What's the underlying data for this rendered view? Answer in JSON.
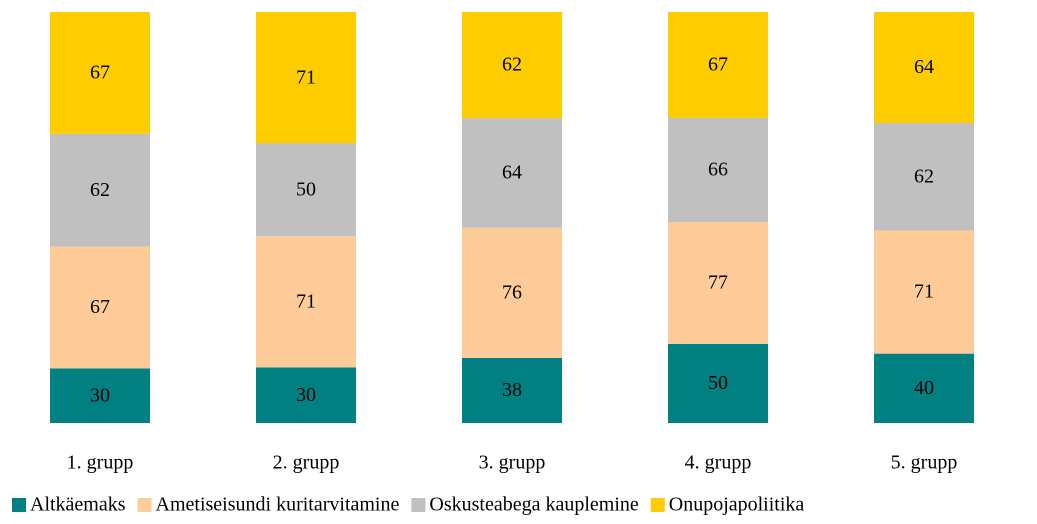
{
  "chart_data": {
    "type": "bar",
    "stacking": "percent",
    "categories": [
      "1. grupp",
      "2. grupp",
      "3. grupp",
      "4. grupp",
      "5. grupp"
    ],
    "series": [
      {
        "name": "Altkäemaks",
        "color": "#008080",
        "values": [
          30,
          30,
          38,
          50,
          40
        ]
      },
      {
        "name": "Ametiseisundi kuritarvitamine",
        "color": "#ffcc99",
        "values": [
          67,
          71,
          76,
          77,
          71
        ]
      },
      {
        "name": "Oskusteabega kauplemine",
        "color": "#c0c0c0",
        "values": [
          62,
          50,
          64,
          66,
          62
        ]
      },
      {
        "name": "Onupojapoliitika",
        "color": "#ffcc00",
        "values": [
          67,
          71,
          62,
          67,
          64
        ]
      }
    ],
    "legend": "bottom"
  }
}
